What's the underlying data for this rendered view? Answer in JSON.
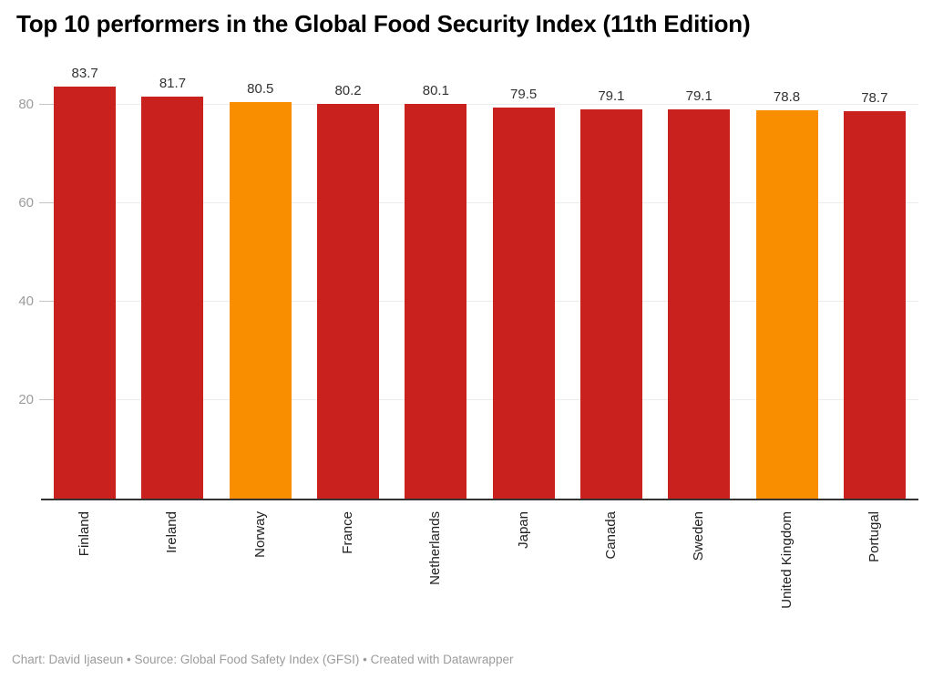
{
  "chart_data": {
    "type": "bar",
    "title": "Top 10 performers in the Global Food Security Index (11th Edition)",
    "categories": [
      "Finland",
      "Ireland",
      "Norway",
      "France",
      "Netherlands",
      "Japan",
      "Canada",
      "Sweden",
      "United Kingdom",
      "Portugal"
    ],
    "values": [
      83.7,
      81.7,
      80.5,
      80.2,
      80.1,
      79.5,
      79.1,
      79.1,
      78.8,
      78.7
    ],
    "value_labels": [
      "83.7",
      "81.7",
      "80.5",
      "80.2",
      "80.1",
      "79.5",
      "79.1",
      "79.1",
      "78.8",
      "78.7"
    ],
    "highlighted_categories": [
      "Norway",
      "United Kingdom"
    ],
    "colors": {
      "default_bar": "#C9211E",
      "highlight_bar": "#F98F00"
    },
    "xlabel": "",
    "ylabel": "",
    "yticks": [
      20,
      40,
      60,
      80
    ],
    "ylim": [
      0,
      90
    ],
    "grid": true,
    "legend": "none",
    "footer": "Chart: David Ijaseun • Source: Global Food Safety Index (GFSI) • Created with Datawrapper"
  }
}
